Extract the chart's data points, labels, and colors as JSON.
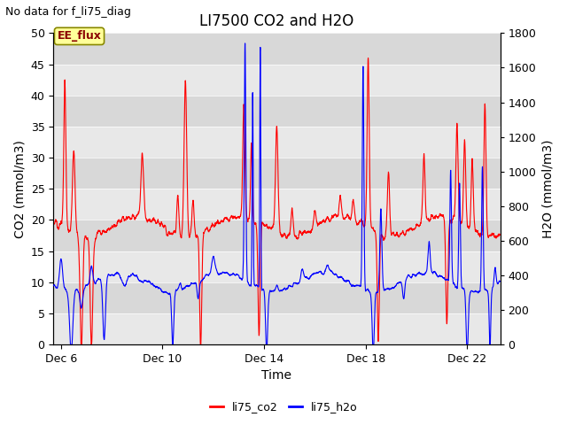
{
  "title": "LI7500 CO2 and H2O",
  "suptitle": "No data for f_li75_diag",
  "xlabel": "Time",
  "ylabel_left": "CO2 (mmol/m3)",
  "ylabel_right": "H2O (mmol/m3)",
  "xlim_days": [
    5.7,
    23.3
  ],
  "ylim_left": [
    0,
    50
  ],
  "ylim_right": [
    0,
    1800
  ],
  "yticks_left": [
    0,
    5,
    10,
    15,
    20,
    25,
    30,
    35,
    40,
    45,
    50
  ],
  "yticks_right": [
    0,
    200,
    400,
    600,
    800,
    1000,
    1200,
    1400,
    1600,
    1800
  ],
  "xticks_days": [
    6,
    10,
    14,
    18,
    22
  ],
  "xtick_labels": [
    "Dec 6",
    "Dec 10",
    "Dec 14",
    "Dec 18",
    "Dec 22"
  ],
  "legend_labels": [
    "li75_co2",
    "li75_h2o"
  ],
  "legend_colors": [
    "red",
    "blue"
  ],
  "line_color_co2": "red",
  "line_color_h2o": "blue",
  "line_width": 0.8,
  "band_colors": [
    "#e8e8e8",
    "#d8d8d8"
  ],
  "annotation_box_text": "EE_flux",
  "annotation_box_color": "#ffff99",
  "annotation_box_edge": "#888800",
  "title_fontsize": 12,
  "suptitle_fontsize": 9,
  "axis_label_fontsize": 10,
  "tick_fontsize": 9
}
